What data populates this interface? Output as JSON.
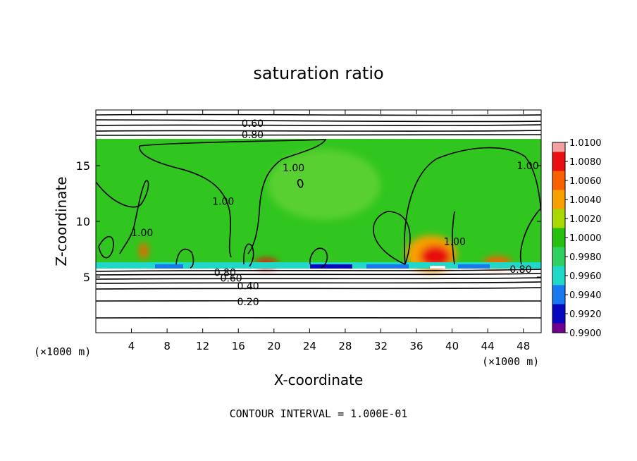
{
  "chart_data": {
    "type": "heatmap",
    "title": "saturation ratio",
    "xlabel": "X-coordinate",
    "ylabel": "Z-coordinate",
    "x_unit_note_left": "(×1000 m)",
    "x_unit_note_right": "(×1000 m)",
    "xlim": [
      0,
      50
    ],
    "ylim": [
      0,
      20
    ],
    "x_ticks": [
      4,
      8,
      12,
      16,
      20,
      24,
      28,
      32,
      36,
      40,
      44,
      48
    ],
    "y_ticks": [
      5,
      10,
      15
    ],
    "footer": "CONTOUR INTERVAL = 1.000E-01",
    "colorbar": {
      "labels": [
        "1.0100",
        "1.0080",
        "1.0060",
        "1.0040",
        "1.0020",
        "1.0000",
        "0.9980",
        "0.9960",
        "0.9940",
        "0.9920",
        "0.9900"
      ],
      "colors": [
        "#f4a0a0",
        "#e81010",
        "#f86000",
        "#f8a000",
        "#a8d800",
        "#28c010",
        "#30d060",
        "#20d8c8",
        "#1878f0",
        "#0808c0",
        "#700090"
      ]
    },
    "contour_labels": [
      {
        "text": "0.60",
        "x": 17.6,
        "z": 18.8
      },
      {
        "text": "0.80",
        "x": 17.6,
        "z": 17.8
      },
      {
        "text": "1.00",
        "x": 22.2,
        "z": 14.8
      },
      {
        "text": "1.00",
        "x": 14.3,
        "z": 11.8
      },
      {
        "text": "1.00",
        "x": 5.2,
        "z": 9.0
      },
      {
        "text": "1.00",
        "x": 40.3,
        "z": 8.2
      },
      {
        "text": "1.00",
        "x": 48.5,
        "z": 15.0
      },
      {
        "text": "0.80",
        "x": 14.5,
        "z": 5.4
      },
      {
        "text": "0.60",
        "x": 15.2,
        "z": 4.9
      },
      {
        "text": "0.40",
        "x": 17.1,
        "z": 4.2
      },
      {
        "text": "0.20",
        "x": 17.1,
        "z": 2.8
      },
      {
        "text": "0.80",
        "x": 47.7,
        "z": 5.7
      }
    ]
  }
}
